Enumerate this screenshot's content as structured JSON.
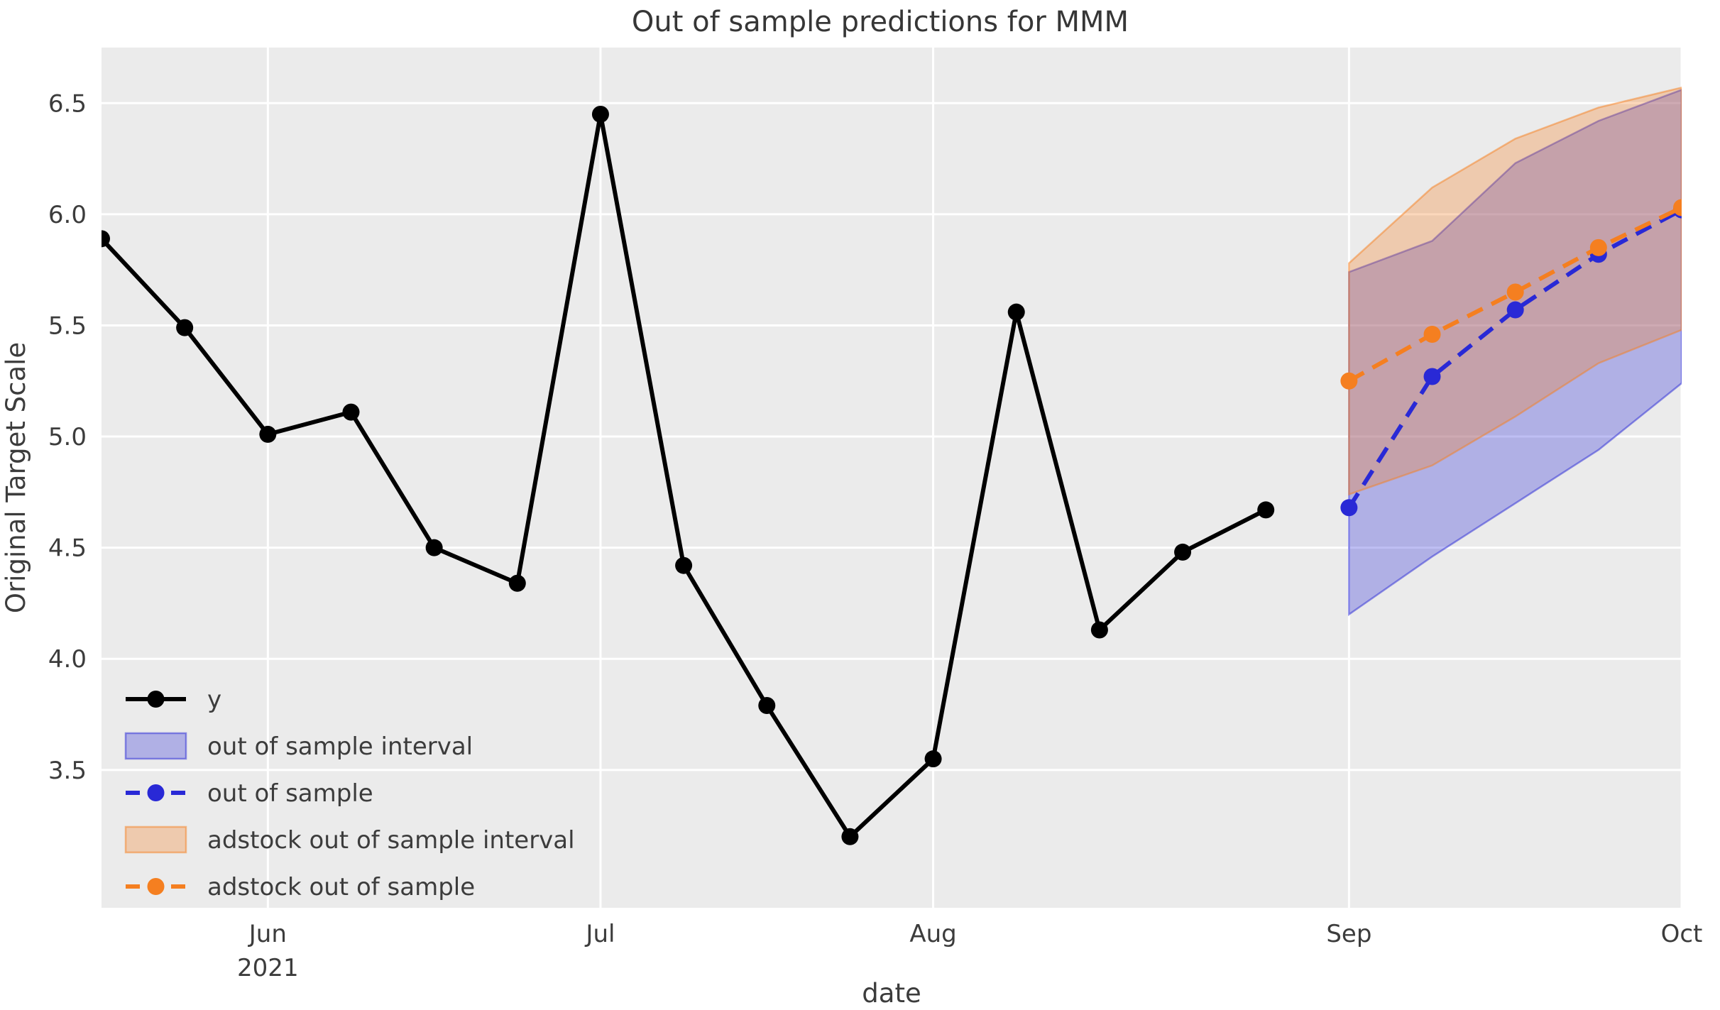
{
  "figure": {
    "background": "#ffffff",
    "plot_background": "#ebebeb",
    "grid_color": "#ffffff",
    "text_color": "#3c3c3c"
  },
  "chart_data": {
    "type": "line",
    "title": "Out of sample predictions for MMM",
    "xlabel": "date",
    "ylabel": "Original Target Scale",
    "x_frequency": "weekly",
    "dates": [
      "2021-05-23",
      "2021-05-30",
      "2021-06-06",
      "2021-06-13",
      "2021-06-20",
      "2021-06-27",
      "2021-07-04",
      "2021-07-11",
      "2021-07-18",
      "2021-07-25",
      "2021-08-01",
      "2021-08-08",
      "2021-08-15",
      "2021-08-22",
      "2021-08-29",
      "2021-09-05",
      "2021-09-12",
      "2021-09-19",
      "2021-09-26",
      "2021-10-03"
    ],
    "xlim": [
      0,
      19
    ],
    "ylim": [
      2.88,
      6.75
    ],
    "grid": true,
    "legend_position": "lower left",
    "y_ticks": [
      {
        "value": 3.5,
        "label": "3.5"
      },
      {
        "value": 4.0,
        "label": "4.0"
      },
      {
        "value": 4.5,
        "label": "4.5"
      },
      {
        "value": 5.0,
        "label": "5.0"
      },
      {
        "value": 5.5,
        "label": "5.5"
      },
      {
        "value": 6.0,
        "label": "6.0"
      },
      {
        "value": 6.5,
        "label": "6.5"
      }
    ],
    "x_ticks": [
      {
        "index": 2,
        "label": "Jun",
        "sublabel": "2021"
      },
      {
        "index": 6,
        "label": "Jul",
        "sublabel": ""
      },
      {
        "index": 10,
        "label": "Aug",
        "sublabel": ""
      },
      {
        "index": 15,
        "label": "Sep",
        "sublabel": ""
      },
      {
        "index": 19,
        "label": "Oct",
        "sublabel": ""
      }
    ],
    "series": [
      {
        "name": "y",
        "legend": "line",
        "color": "#000000",
        "marker": "circle",
        "line_style": "solid",
        "start_index": 0,
        "values": [
          5.89,
          5.49,
          5.01,
          5.11,
          4.5,
          4.34,
          6.45,
          4.42,
          3.79,
          3.2,
          3.55,
          5.56,
          4.13,
          4.48,
          4.67
        ]
      },
      {
        "name": "out of sample interval",
        "legend": "band",
        "color": "#2929d6",
        "fill_opacity": 0.3,
        "start_index": 15,
        "lower": [
          4.2,
          4.46,
          4.7,
          4.94,
          5.24
        ],
        "upper": [
          5.74,
          5.88,
          6.23,
          6.42,
          6.56
        ]
      },
      {
        "name": "out of sample",
        "legend": "dashed-line",
        "color": "#2929d6",
        "marker": "circle",
        "line_style": "dashed",
        "start_index": 15,
        "values": [
          4.68,
          5.27,
          5.57,
          5.82,
          6.02
        ]
      },
      {
        "name": "adstock out of sample interval",
        "legend": "band",
        "color": "#f57f20",
        "fill_opacity": 0.3,
        "start_index": 15,
        "lower": [
          4.74,
          4.87,
          5.09,
          5.33,
          5.48
        ],
        "upper": [
          5.78,
          6.12,
          6.34,
          6.48,
          6.57
        ]
      },
      {
        "name": "adstock out of sample",
        "legend": "dashed-line",
        "color": "#f57f20",
        "marker": "circle",
        "line_style": "dashed",
        "start_index": 15,
        "values": [
          5.25,
          5.46,
          5.65,
          5.85,
          6.03
        ]
      }
    ]
  }
}
